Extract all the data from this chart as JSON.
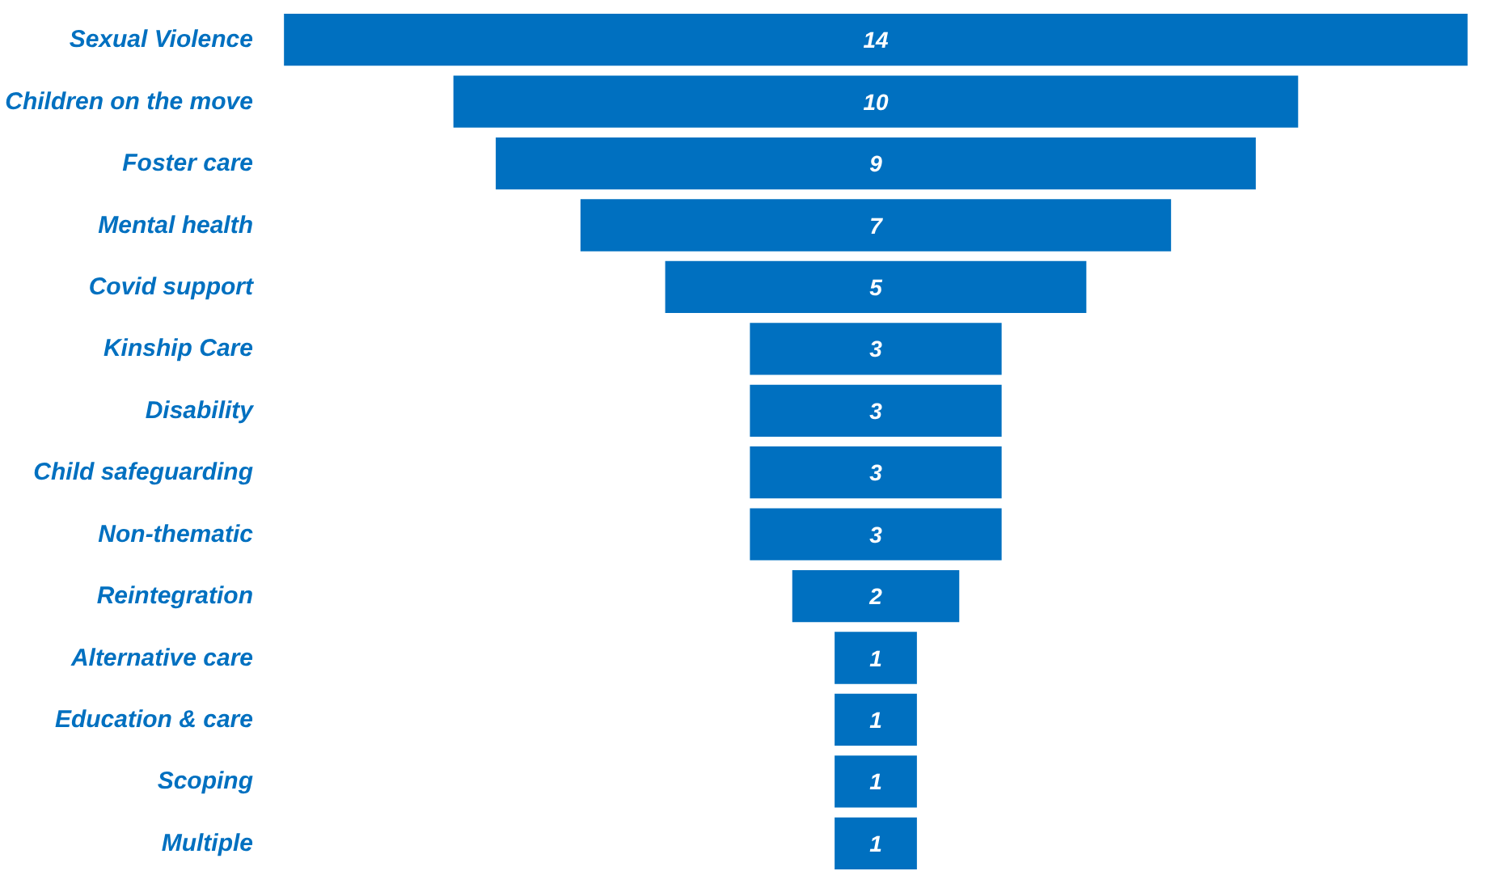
{
  "chart_data": {
    "type": "other",
    "categories": [
      "Sexual Violence",
      "Children on the move",
      "Foster care",
      "Mental health",
      "Covid support",
      "Kinship Care",
      "Disability",
      "Child safeguarding",
      "Non-thematic",
      "Reintegration",
      "Alternative care",
      "Education & care",
      "Scoping",
      "Multiple"
    ],
    "values": [
      14,
      10,
      9,
      7,
      5,
      3,
      3,
      3,
      3,
      2,
      1,
      1,
      1,
      1
    ],
    "color": "#0070c0",
    "data_labels": true
  }
}
